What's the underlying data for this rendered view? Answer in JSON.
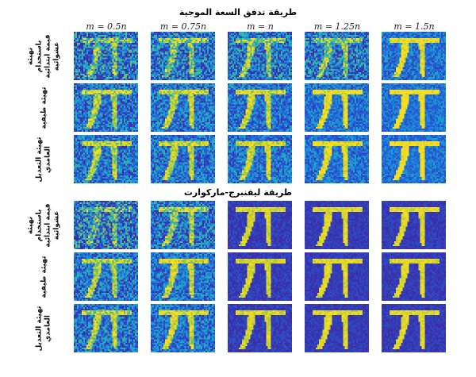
{
  "sections": [
    {
      "title": "طريقة تدفق السعة الموجية",
      "columns": [
        "m = 0.5n",
        "m = 0.75n",
        "m = n",
        "m = 1.25n",
        "m = 1.5n"
      ],
      "rows": [
        "تهيئة باستخدام قيمة ابتدائية عشوائية",
        "تهيئة طيفية",
        "تهيئة التعديل العامدي"
      ]
    },
    {
      "title": "طريقة ليفنبرج-ماركوارت",
      "rows": [
        "تهيئة باستخدام قيمة ابتدائية عشوائية",
        "تهيئة طيفية",
        "تهيئة التعديل العامدي"
      ]
    }
  ],
  "colormap": [
    "#3b2ea8",
    "#2162dc",
    "#1aa3d0",
    "#3fbf9a",
    "#a7c83c",
    "#f7de22"
  ]
}
